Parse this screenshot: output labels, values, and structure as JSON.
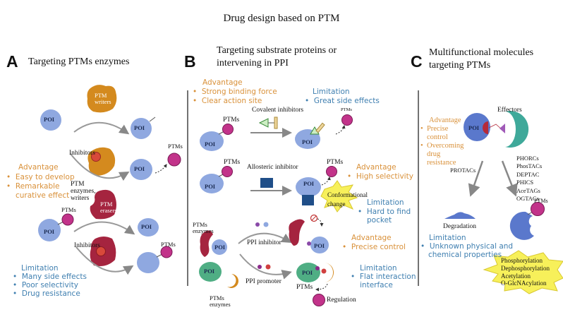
{
  "title": "Drug design based on PTM",
  "colors": {
    "advantage": "#d9913a",
    "limitation": "#3f7fb0",
    "poi": "#8fa8e0",
    "ptm": "#c2338a",
    "writer": "#d48a1e",
    "eraser": "#a5243f",
    "ppi_green": "#4fae84",
    "effector": "#3fa99a",
    "allosteric": "#1f4e88",
    "star": "#f7f05a"
  },
  "panel_a": {
    "letter": "A",
    "heading": "Targeting PTMs enzymes",
    "writer_label": [
      "PTM",
      "writers"
    ],
    "eraser_label": [
      "PTM",
      "erasers"
    ],
    "inhibitors": "Inhibitors",
    "enzymes_label": [
      "PTM",
      "enzymes,",
      "writers"
    ],
    "poi": "POI",
    "ptms": "PTMs",
    "advantage": {
      "title": "Advantage",
      "items": [
        "Easy to develop",
        "Remarkable",
        "curative effect"
      ]
    },
    "limitation": {
      "title": "Limitation",
      "items": [
        "Many side effects",
        "Poor selectivity",
        "Drug resistance"
      ]
    }
  },
  "panel_b": {
    "letter": "B",
    "heading": [
      "Targeting substrate proteins or",
      "intervening in PPI"
    ],
    "advantage1": {
      "title": "Advantage",
      "items": [
        "Strong binding force",
        "Clear action site"
      ]
    },
    "limitation1": {
      "title": "Limitation",
      "items": [
        "Great side effects"
      ]
    },
    "covalent": "Covalent inhibitors",
    "allosteric": "Allosteric inhibitor",
    "conformational": [
      "Conformational",
      "change"
    ],
    "advantage2": {
      "title": "Advantage",
      "items": [
        "High selectivity"
      ]
    },
    "limitation2": {
      "title": "Limitation",
      "items": [
        "Hard to find",
        "pocket"
      ]
    },
    "enzymes_label": [
      "PTMs",
      "enzymes"
    ],
    "ppi_inhibitor": "PPI inhibitor",
    "ppi_promoter": "PPI promoter",
    "advantage3": {
      "title": "Advantage",
      "items": [
        "Precise control"
      ]
    },
    "limitation3": {
      "title": "Limitation",
      "items": [
        "Flat interaction",
        "interface"
      ]
    },
    "regulation": "Regulation",
    "poi": "POI",
    "ptms": "PTMs"
  },
  "panel_c": {
    "letter": "C",
    "heading": [
      "Multifunctional molecules",
      "targeting PTMs"
    ],
    "effectors": "Effectors",
    "poi": "POI",
    "advantage": {
      "title": "Advantage",
      "items": [
        "Precise",
        "control",
        "Overcoming",
        "drug",
        "resistance"
      ]
    },
    "protacs": "PROTACs",
    "molecules": [
      "PHORCs",
      "PhosTACs",
      "DEPTAC",
      "PHICS",
      "AceTAGs",
      "OGTACs"
    ],
    "ptms": "PTMs",
    "degradation": "Degradation",
    "limitation": {
      "title": "Limitation",
      "items": [
        "Unknown physical and",
        "chemical properties"
      ]
    },
    "modifications": [
      "Phosphorylation",
      "Dephosphorylation",
      "Acetylation",
      "O-GlcNAcylation"
    ]
  }
}
